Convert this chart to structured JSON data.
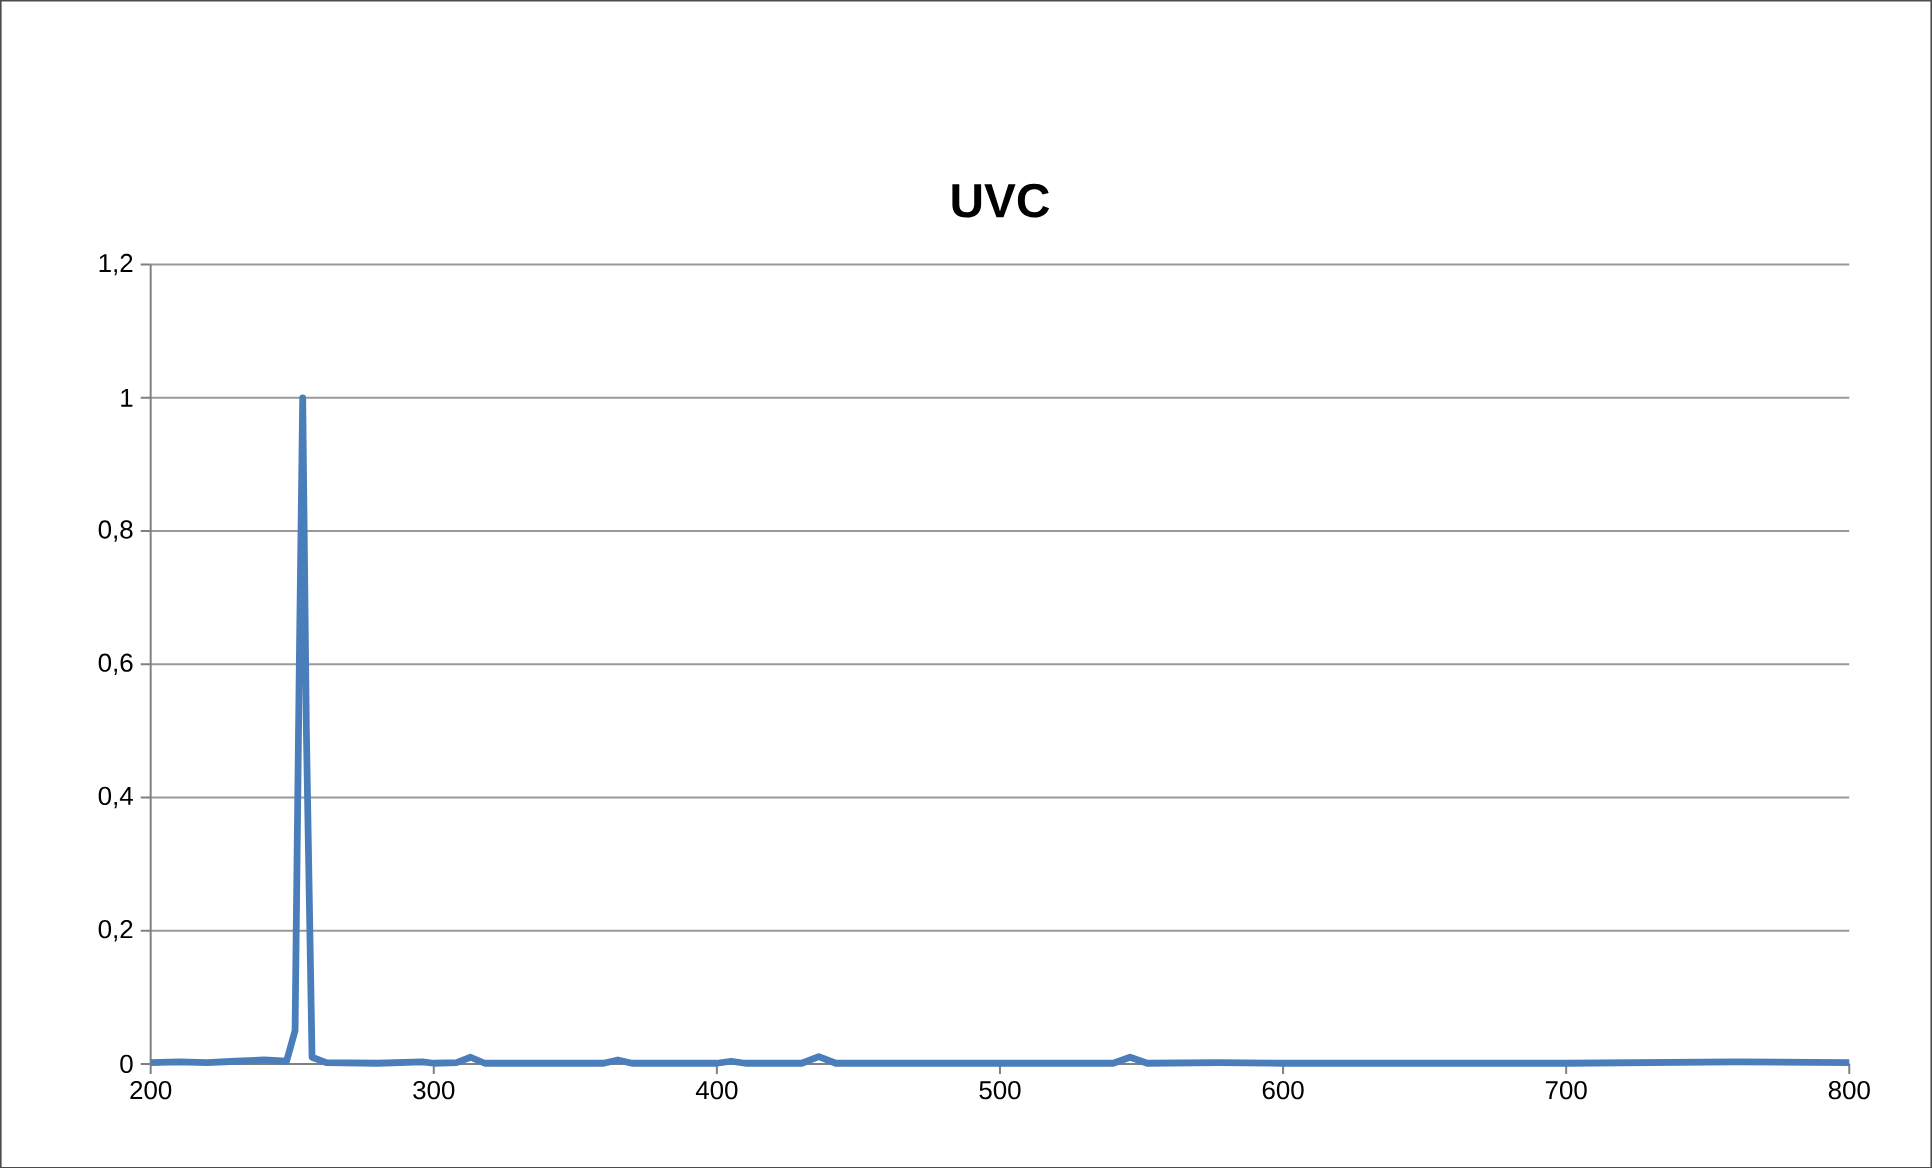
{
  "chart_data": {
    "type": "line",
    "title": "UVC",
    "x": [
      200,
      210,
      220,
      230,
      240,
      248,
      251,
      252.5,
      253.7,
      255,
      257,
      262,
      280,
      296,
      300,
      308,
      313,
      318,
      340,
      360,
      365,
      370,
      400,
      405,
      410,
      430,
      436,
      442,
      480,
      540,
      546,
      552,
      577,
      600,
      700,
      760,
      800
    ],
    "series": [
      {
        "color": "#4a7ebb",
        "values": [
          0.002,
          0.003,
          0.002,
          0.004,
          0.006,
          0.004,
          0.05,
          0.6,
          1,
          0.5,
          0.01,
          0.002,
          0.001,
          0.003,
          0.001,
          0.002,
          0.01,
          0.001,
          0.001,
          0.001,
          0.006,
          0.001,
          0.001,
          0.004,
          0.001,
          0.001,
          0.011,
          0.001,
          0.001,
          0.001,
          0.01,
          0.001,
          0.002,
          0.001,
          0.001,
          0.003,
          0.002
        ]
      }
    ],
    "xlim": [
      200,
      800
    ],
    "xticks": [
      200,
      300,
      400,
      500,
      600,
      700,
      800
    ],
    "ylim": [
      0,
      1.2
    ],
    "yticks": [
      0,
      {
        "value": 0.2,
        "label": "0,2"
      },
      {
        "value": 0.4,
        "label": "0,4"
      },
      {
        "value": 0.6,
        "label": "0,6"
      },
      {
        "value": 0.8,
        "label": "0,8"
      },
      1,
      {
        "value": 1.2,
        "label": "1,2"
      }
    ],
    "grid": "y",
    "marker": "none",
    "line_style": "solid"
  }
}
